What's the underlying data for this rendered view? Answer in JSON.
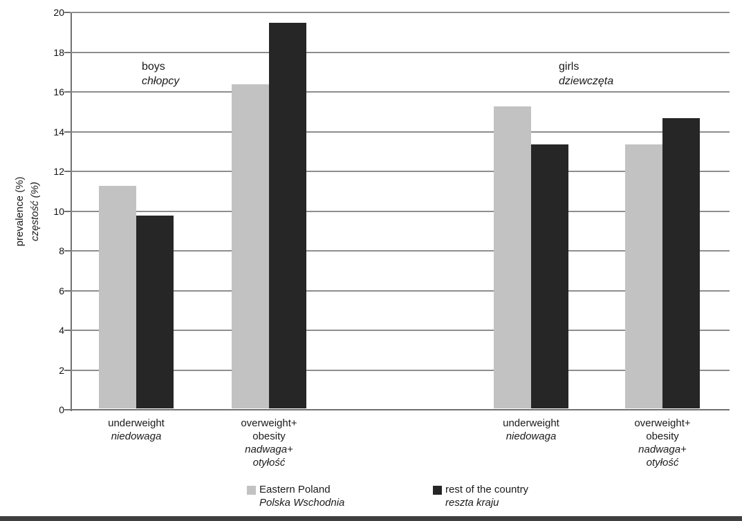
{
  "chart": {
    "ylabel": {
      "line1": "prevalence (%)",
      "line2": "częstość (%)"
    },
    "group_labels": [
      {
        "en": "boys",
        "pl": "chłopcy"
      },
      {
        "en": "girls",
        "pl": "dziewczęta"
      }
    ]
  },
  "chart_data": {
    "type": "bar",
    "title": "",
    "xlabel": "",
    "ylabel": "prevalence (%) / częstość (%)",
    "ylim": [
      0,
      20
    ],
    "ytick_step": 2,
    "yticks": [
      0,
      2,
      4,
      6,
      8,
      10,
      12,
      14,
      16,
      18,
      20
    ],
    "grid": true,
    "legend_position": "bottom",
    "categories": [
      {
        "en": [
          "underweight"
        ],
        "pl": [
          "niedowaga"
        ]
      },
      {
        "en": [
          "overweight+",
          "obesity"
        ],
        "pl": [
          "nadwaga+",
          "otyłość"
        ]
      },
      {
        "en": [
          "underweight"
        ],
        "pl": [
          "niedowaga"
        ]
      },
      {
        "en": [
          "overweight+",
          "obesity"
        ],
        "pl": [
          "nadwaga+",
          "otyłość"
        ]
      }
    ],
    "group_annotations": [
      {
        "en": "boys",
        "pl": "chłopcy",
        "applies_to_categories": [
          0,
          1
        ]
      },
      {
        "en": "girls",
        "pl": "dziewczęta",
        "applies_to_categories": [
          2,
          3
        ]
      }
    ],
    "series": [
      {
        "name": "Eastern Poland",
        "name_pl": "Polska Wschodnia",
        "color": "#c2c2c2",
        "values": [
          11.2,
          16.3,
          15.2,
          13.3
        ]
      },
      {
        "name": "rest of the country",
        "name_pl": "reszta kraju",
        "color": "#262626",
        "values": [
          9.7,
          19.4,
          13.3,
          14.6
        ]
      }
    ],
    "colors": {
      "gridline": "#8d8d8d",
      "axis": "#707070",
      "text": "#1a1a1a",
      "page_border": "#3f3f3f"
    }
  }
}
